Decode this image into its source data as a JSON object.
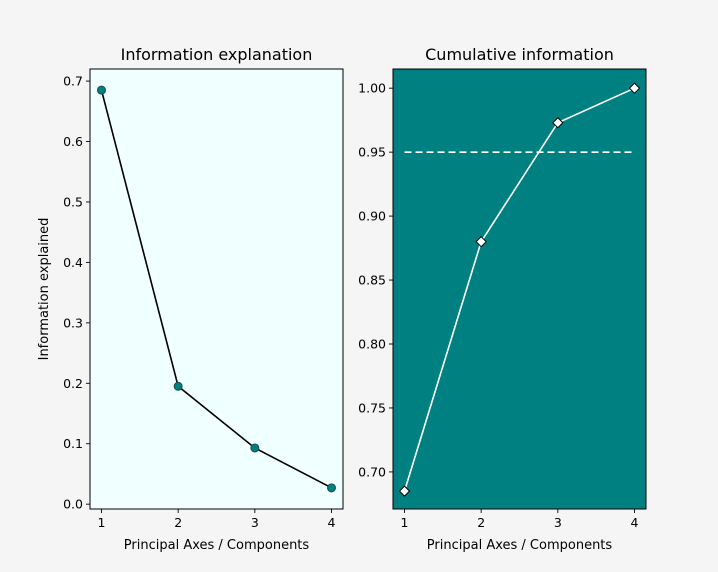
{
  "chart_data": [
    {
      "type": "line",
      "title": "Information explanation",
      "xlabel": "Principal Axes / Components",
      "ylabel": "Information explained",
      "x": [
        1,
        2,
        3,
        4
      ],
      "series": [
        {
          "values": [
            0.685,
            0.195,
            0.093,
            0.027
          ]
        }
      ],
      "xlim": [
        0.85,
        4.15
      ],
      "ylim": [
        -0.008,
        0.72
      ],
      "xticks": [
        1,
        2,
        3,
        4
      ],
      "xtick_labels": [
        "1",
        "2",
        "3",
        "4"
      ],
      "yticks": [
        0.0,
        0.1,
        0.2,
        0.3,
        0.4,
        0.5,
        0.6,
        0.7
      ],
      "ytick_labels": [
        "0.0",
        "0.1",
        "0.2",
        "0.3",
        "0.4",
        "0.5",
        "0.6",
        "0.7"
      ],
      "grid": false,
      "colors": {
        "background": "#f0ffff",
        "line": "#000000",
        "marker": "#008080",
        "marker_edge": "#1a4d4d"
      },
      "marker": "circle"
    },
    {
      "type": "line",
      "title": "Cumulative information",
      "xlabel": "Principal Axes / Components",
      "ylabel": "",
      "x": [
        1,
        2,
        3,
        4
      ],
      "series": [
        {
          "values": [
            0.685,
            0.88,
            0.973,
            1.0
          ]
        }
      ],
      "reference_line": {
        "y": 0.95,
        "style": "dashed",
        "x_from": 1,
        "x_to": 4
      },
      "xlim": [
        0.85,
        4.15
      ],
      "ylim": [
        0.671,
        1.015
      ],
      "xticks": [
        1,
        2,
        3,
        4
      ],
      "xtick_labels": [
        "1",
        "2",
        "3",
        "4"
      ],
      "yticks": [
        0.7,
        0.75,
        0.8,
        0.85,
        0.9,
        0.95,
        1.0
      ],
      "ytick_labels": [
        "0.70",
        "0.75",
        "0.80",
        "0.85",
        "0.90",
        "0.95",
        "1.00"
      ],
      "grid": false,
      "colors": {
        "background": "#008080",
        "line": "#ffffff",
        "marker": "#ffffff",
        "marker_edge": "#000000",
        "reference_line": "#ffffff"
      },
      "marker": "diamond"
    }
  ]
}
